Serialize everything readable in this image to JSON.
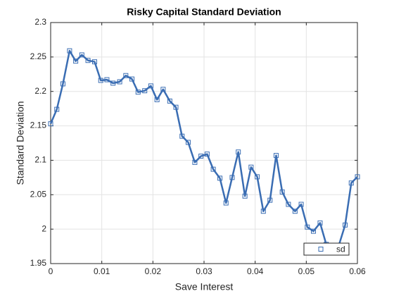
{
  "chart_data": {
    "type": "line",
    "title": "Risky Capital Standard Deviation",
    "x_label": "Save Interest",
    "y_label": "Standard Deviation",
    "x": [
      0,
      0.0012,
      0.0024,
      0.0037,
      0.0049,
      0.0061,
      0.0073,
      0.0086,
      0.0098,
      0.011,
      0.0122,
      0.0135,
      0.0147,
      0.0159,
      0.0171,
      0.0184,
      0.0196,
      0.0208,
      0.022,
      0.0233,
      0.0245,
      0.0257,
      0.0269,
      0.0282,
      0.0294,
      0.0306,
      0.0318,
      0.0331,
      0.0343,
      0.0355,
      0.0367,
      0.038,
      0.0392,
      0.0404,
      0.0416,
      0.0429,
      0.0441,
      0.0453,
      0.0465,
      0.0478,
      0.049,
      0.0502,
      0.0514,
      0.0527,
      0.0539,
      0.0551,
      0.0563,
      0.0576,
      0.0588,
      0.06
    ],
    "series": [
      {
        "name": "sd",
        "color": "#3a6db3",
        "values": [
          2.153,
          2.174,
          2.211,
          2.259,
          2.244,
          2.253,
          2.245,
          2.243,
          2.216,
          2.217,
          2.212,
          2.214,
          2.223,
          2.218,
          2.199,
          2.201,
          2.208,
          2.188,
          2.203,
          2.186,
          2.177,
          2.135,
          2.126,
          2.097,
          2.106,
          2.109,
          2.087,
          2.074,
          2.038,
          2.075,
          2.112,
          2.048,
          2.09,
          2.076,
          2.026,
          2.042,
          2.107,
          2.054,
          2.036,
          2.026,
          2.036,
          2.003,
          1.997,
          2.009,
          1.978,
          1.975,
          1.975,
          2.006,
          2.067,
          2.076
        ]
      }
    ],
    "xlim": [
      0,
      0.06
    ],
    "xticks": [
      0,
      0.01,
      0.02,
      0.03,
      0.04,
      0.05,
      0.06
    ],
    "ylim": [
      1.95,
      2.3
    ],
    "yticks": [
      1.95,
      2,
      2.05,
      2.1,
      2.15,
      2.2,
      2.25,
      2.3
    ],
    "grid": true,
    "legend": "lower right"
  }
}
